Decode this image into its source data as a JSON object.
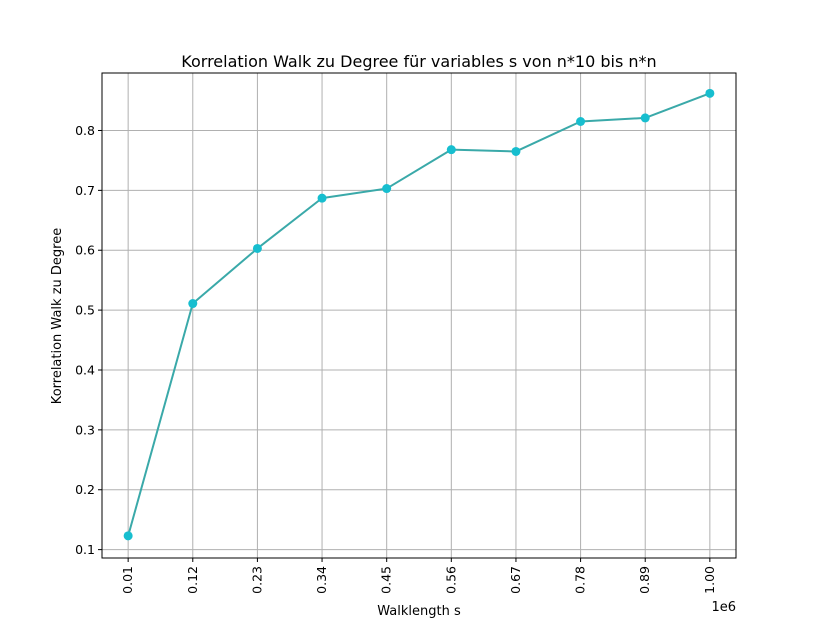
{
  "chart_data": {
    "type": "line",
    "title": "Korrelation Walk zu Degree für variables s von n*10 bis n*n",
    "xlabel": "Walklength s",
    "ylabel": "Korrelation Walk zu Degree",
    "x_offset_text": "1e6",
    "x_ticks": [
      "0.01",
      "0.12",
      "0.23",
      "0.34",
      "0.45",
      "0.56",
      "0.67",
      "0.78",
      "0.89",
      "1.00"
    ],
    "y_ticks": [
      "0.1",
      "0.2",
      "0.3",
      "0.4",
      "0.5",
      "0.6",
      "0.7",
      "0.8"
    ],
    "xlim": [
      -0.0345,
      1.0445
    ],
    "ylim": [
      0.086,
      0.896
    ],
    "grid": true,
    "series": [
      {
        "color": "#17becf",
        "line_color": "#3aa9a9",
        "marker": "circle",
        "x": [
          0.01,
          0.12,
          0.23,
          0.34,
          0.45,
          0.56,
          0.67,
          0.78,
          0.89,
          1.0
        ],
        "y": [
          0.123,
          0.511,
          0.603,
          0.687,
          0.703,
          0.768,
          0.765,
          0.815,
          0.821,
          0.862
        ]
      }
    ]
  }
}
